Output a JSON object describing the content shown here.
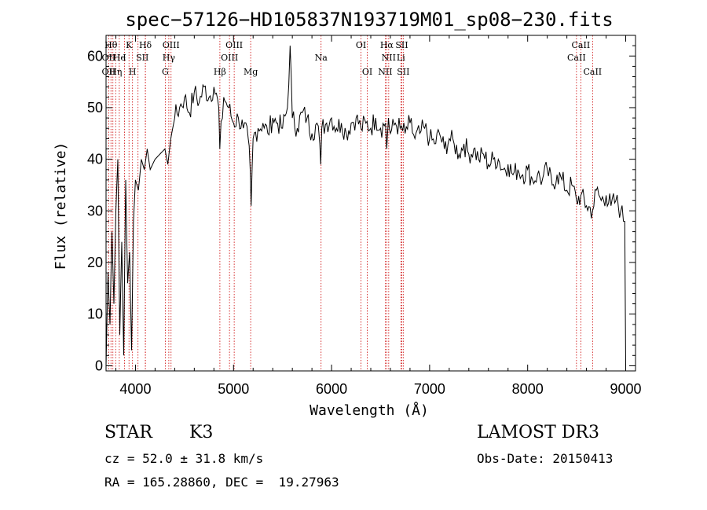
{
  "chart_data": {
    "type": "line",
    "title": "spec−57126−HD105837N193719M01_sp08−230.fits",
    "xlabel": "Wavelength (Å)",
    "ylabel": "Flux (relative)",
    "xlim": [
      3700,
      9100
    ],
    "ylim": [
      -1,
      64
    ],
    "xticks": [
      4000,
      5000,
      6000,
      7000,
      8000,
      9000
    ],
    "yticks": [
      0,
      10,
      20,
      30,
      40,
      50,
      60
    ],
    "series": [
      {
        "name": "flux",
        "x": [
          3700,
          3720,
          3740,
          3760,
          3780,
          3800,
          3820,
          3840,
          3860,
          3880,
          3900,
          3920,
          3940,
          3960,
          3980,
          4000,
          4030,
          4060,
          4090,
          4120,
          4150,
          4200,
          4250,
          4300,
          4330,
          4360,
          4400,
          4450,
          4500,
          4550,
          4600,
          4650,
          4700,
          4750,
          4800,
          4850,
          4860,
          4900,
          4950,
          5000,
          5050,
          5100,
          5150,
          5170,
          5180,
          5200,
          5250,
          5300,
          5350,
          5400,
          5450,
          5500,
          5550,
          5577,
          5600,
          5650,
          5700,
          5750,
          5800,
          5850,
          5880,
          5890,
          5900,
          5950,
          6000,
          6050,
          6100,
          6150,
          6200,
          6250,
          6300,
          6350,
          6400,
          6450,
          6500,
          6550,
          6563,
          6580,
          6600,
          6650,
          6700,
          6750,
          6800,
          6850,
          6900,
          6950,
          7000,
          7050,
          7100,
          7150,
          7200,
          7250,
          7300,
          7350,
          7400,
          7450,
          7500,
          7550,
          7600,
          7650,
          7700,
          7750,
          7800,
          7850,
          7900,
          7950,
          8000,
          8050,
          8100,
          8150,
          8200,
          8250,
          8300,
          8350,
          8400,
          8450,
          8498,
          8542,
          8600,
          8662,
          8700,
          8750,
          8800,
          8850,
          8900,
          8950,
          8990,
          9000
        ],
        "values": [
          0,
          18,
          8,
          26,
          12,
          30,
          40,
          6,
          24,
          2,
          36,
          16,
          22,
          3,
          28,
          36,
          34,
          40,
          38,
          42,
          38,
          40,
          41,
          42,
          39,
          44,
          48,
          50,
          52,
          49,
          53,
          51,
          54,
          52,
          54,
          50,
          42,
          52,
          50,
          47,
          48,
          46,
          44,
          38,
          31,
          44,
          46,
          47,
          45,
          48,
          47,
          46,
          50,
          62,
          48,
          46,
          49,
          48,
          45,
          47,
          43,
          39,
          46,
          47,
          48,
          46,
          47,
          45,
          47,
          48,
          46,
          47,
          46,
          48,
          46,
          47,
          42,
          48,
          45,
          47,
          46,
          45,
          47,
          44,
          45,
          46,
          44,
          43,
          45,
          42,
          44,
          43,
          41,
          43,
          41,
          42,
          40,
          41,
          39,
          40,
          40,
          38,
          39,
          37,
          38,
          37,
          38,
          36,
          37,
          36,
          38,
          35,
          37,
          36,
          34,
          35,
          32,
          33,
          31,
          30,
          34,
          32,
          33,
          31,
          32,
          30,
          28,
          0
        ]
      }
    ],
    "line_groups": [
      {
        "x": [
          3727,
          3750,
          3770,
          3798,
          3835,
          3889,
          3934,
          3970,
          4026,
          4101
        ],
        "labels": [
          "OII",
          "Hθ",
          "OII",
          "Hη",
          "He",
          "H",
          "K",
          "IS",
          "H",
          "Hδ"
        ]
      },
      {
        "x": [
          4102,
          4304,
          4340,
          4363,
          4861,
          4959,
          5007,
          5175,
          5893
        ],
        "labels": [
          "SII",
          "G",
          "Hγ",
          "OIII",
          "Hβ",
          "OIII",
          "OIII",
          "Mg",
          "Na"
        ]
      },
      {
        "x": [
          6300,
          6364,
          6548,
          6563,
          6583,
          6707,
          6716,
          6731
        ],
        "labels": [
          "OI",
          "OI",
          "NII",
          "Hα",
          "NII",
          "Li",
          "SII",
          "SII"
        ]
      },
      {
        "x": [
          8498,
          8542,
          8662
        ],
        "labels": [
          "CaII",
          "CaII",
          "CaII"
        ]
      }
    ],
    "line_labels": [
      {
        "text": "Hθ",
        "x": 3750,
        "row": 1
      },
      {
        "text": "K",
        "x": 3934,
        "row": 1
      },
      {
        "text": "Hδ",
        "x": 4101,
        "row": 1
      },
      {
        "text": "OIII",
        "x": 4363,
        "row": 1
      },
      {
        "text": "OIII",
        "x": 5007,
        "row": 1
      },
      {
        "text": "OI",
        "x": 6300,
        "row": 1
      },
      {
        "text": "Hα",
        "x": 6563,
        "row": 1
      },
      {
        "text": "SII",
        "x": 6716,
        "row": 1
      },
      {
        "text": "CaII",
        "x": 8542,
        "row": 1
      },
      {
        "text": "OII",
        "x": 3727,
        "row": 2
      },
      {
        "text": "He",
        "x": 3835,
        "row": 2
      },
      {
        "text": "I",
        "x": 3889,
        "row": 2
      },
      {
        "text": "SII",
        "x": 4070,
        "row": 2
      },
      {
        "text": "Hγ",
        "x": 4340,
        "row": 2
      },
      {
        "text": "OIII",
        "x": 4959,
        "row": 2
      },
      {
        "text": "Na",
        "x": 5893,
        "row": 2
      },
      {
        "text": "NII",
        "x": 6583,
        "row": 2
      },
      {
        "text": "Li",
        "x": 6707,
        "row": 2
      },
      {
        "text": "CaII",
        "x": 8498,
        "row": 2
      },
      {
        "text": "OII",
        "x": 3727,
        "row": 3
      },
      {
        "text": "Hη",
        "x": 3798,
        "row": 3
      },
      {
        "text": "H",
        "x": 3970,
        "row": 3
      },
      {
        "text": "G",
        "x": 4304,
        "row": 3
      },
      {
        "text": "Hβ",
        "x": 4861,
        "row": 3
      },
      {
        "text": "Mg",
        "x": 5175,
        "row": 3
      },
      {
        "text": "OI",
        "x": 6364,
        "row": 3
      },
      {
        "text": "NII",
        "x": 6548,
        "row": 3
      },
      {
        "text": "SII",
        "x": 6731,
        "row": 3
      },
      {
        "text": "CaII",
        "x": 8662,
        "row": 3
      }
    ],
    "colors": {
      "spectrum": "#000000",
      "line_markers": "#cc0000",
      "axes": "#000000"
    }
  },
  "info": {
    "class_label": "STAR",
    "subclass": "K3",
    "survey": "LAMOST DR3",
    "cz": "cz = 52.0 ± 31.8 km/s",
    "obs_date": "Obs-Date: 20150413",
    "coords": "RA = 165.28860, DEC =  19.27963"
  }
}
